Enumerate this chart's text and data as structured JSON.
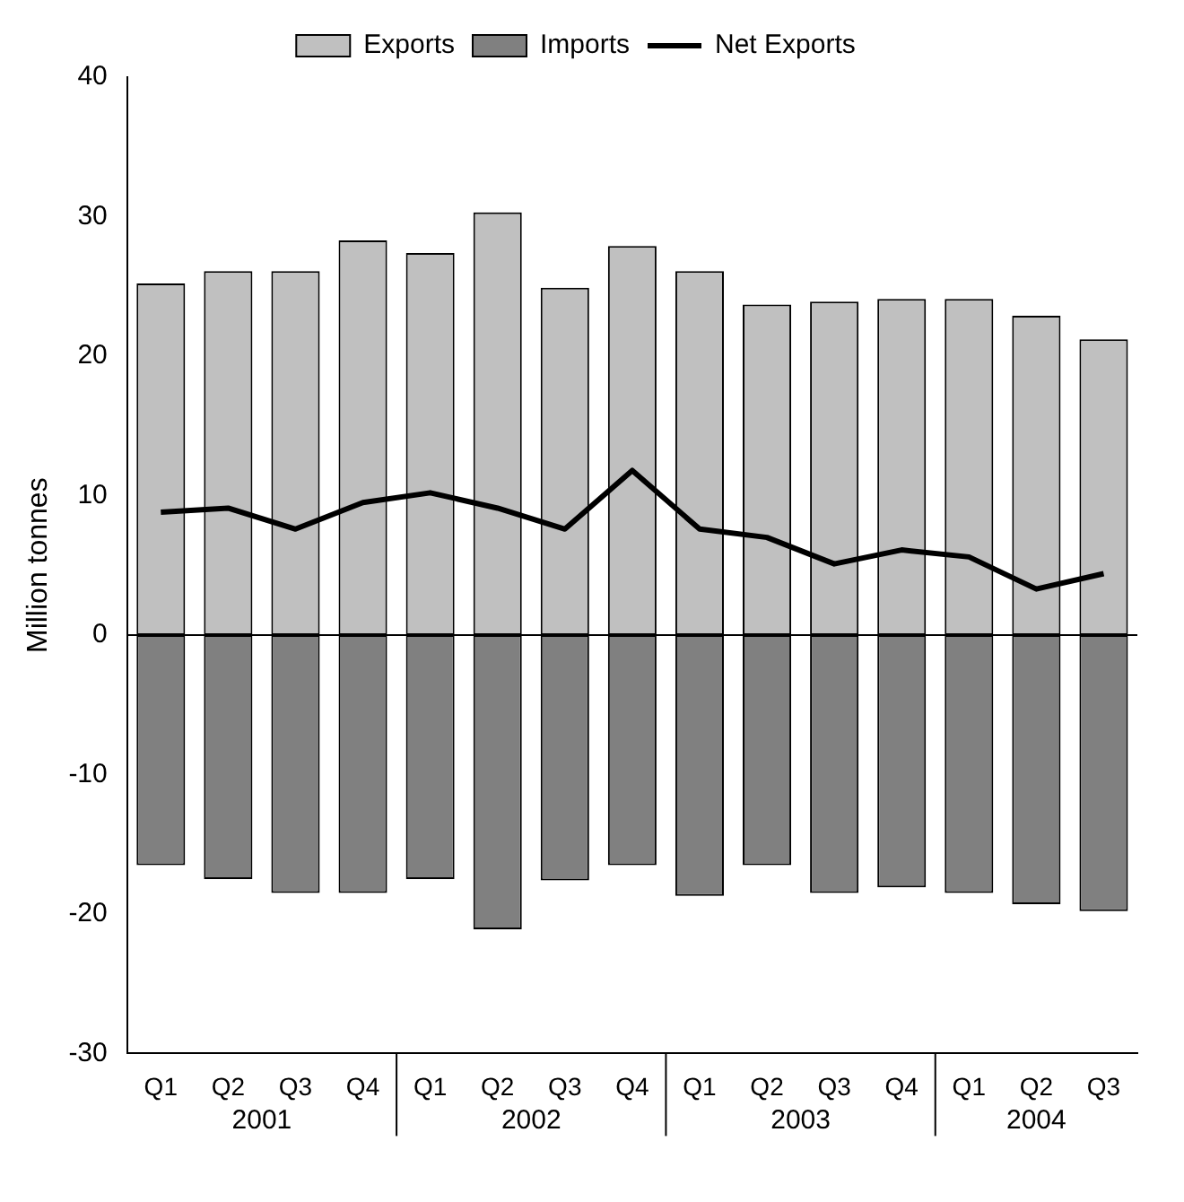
{
  "chart_data": {
    "type": "bar",
    "ylabel": "Million tonnes",
    "categories": [
      "Q1",
      "Q2",
      "Q3",
      "Q4",
      "Q1",
      "Q2",
      "Q3",
      "Q4",
      "Q1",
      "Q2",
      "Q3",
      "Q4",
      "Q1",
      "Q2",
      "Q3"
    ],
    "series": [
      {
        "name": "Exports",
        "color": "#c0c0c0",
        "values": [
          25.2,
          26.1,
          26.1,
          28.3,
          27.4,
          30.3,
          24.9,
          27.9,
          26.1,
          23.7,
          23.9,
          24.1,
          24.1,
          22.9,
          21.2
        ]
      },
      {
        "name": "Imports",
        "color": "#808080",
        "values": [
          -16.5,
          -17.5,
          -18.5,
          -18.5,
          -17.5,
          -21.1,
          -17.6,
          -16.5,
          -18.7,
          -16.5,
          -18.5,
          -18.1,
          -18.5,
          -19.3,
          -19.8
        ]
      },
      {
        "name": "Net Exports",
        "type": "line",
        "color": "#000000",
        "values": [
          8.8,
          9.1,
          7.6,
          9.5,
          10.2,
          9.1,
          7.6,
          11.8,
          7.6,
          7.0,
          5.1,
          6.1,
          5.6,
          3.3,
          4.4
        ]
      }
    ],
    "stacked": true,
    "ylim": [
      -30,
      40
    ],
    "yticks": [
      -30,
      -20,
      -10,
      0,
      10,
      20,
      30,
      40
    ],
    "annotations": [
      "2001",
      "2002",
      "2003",
      "2004"
    ],
    "ref_lines": [
      {
        "axis": "y",
        "value": 0,
        "color": "#000000"
      }
    ],
    "grid": false,
    "legend": "top",
    "marker": "none"
  }
}
